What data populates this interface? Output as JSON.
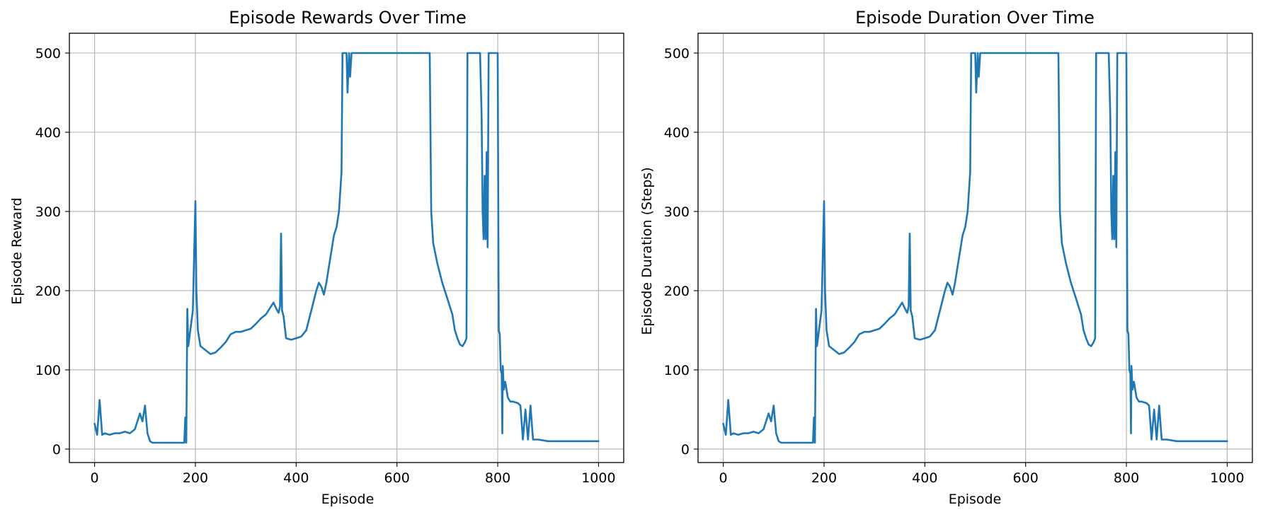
{
  "colors": {
    "series": "#1f77b4",
    "grid": "#b0b0b0",
    "background": "#ffffff"
  },
  "chart_data": [
    {
      "type": "line",
      "title": "Episode Rewards Over Time",
      "xlabel": "Episode",
      "ylabel": "Episode Reward",
      "xlim": [
        -50,
        1050
      ],
      "ylim": [
        -17,
        525
      ],
      "xticks": [
        0,
        200,
        400,
        600,
        800,
        1000
      ],
      "yticks": [
        0,
        100,
        200,
        300,
        400,
        500
      ],
      "grid": true,
      "series": [
        {
          "x": [
            0,
            5,
            10,
            15,
            20,
            30,
            40,
            50,
            60,
            70,
            80,
            90,
            95,
            100,
            105,
            110,
            115,
            120,
            130,
            140,
            150,
            160,
            170,
            178,
            180,
            182,
            184,
            186,
            190,
            195,
            200,
            202,
            205,
            210,
            220,
            230,
            240,
            250,
            260,
            270,
            280,
            290,
            300,
            310,
            320,
            330,
            340,
            350,
            355,
            360,
            365,
            368,
            370,
            372,
            375,
            380,
            390,
            400,
            410,
            420,
            430,
            440,
            445,
            450,
            455,
            460,
            470,
            475,
            480,
            485,
            490,
            492,
            495,
            500,
            502,
            505,
            507,
            510,
            520,
            560,
            600,
            640,
            665,
            668,
            670,
            672,
            680,
            690,
            700,
            710,
            715,
            720,
            725,
            730,
            735,
            738,
            740,
            742,
            745,
            765,
            768,
            770,
            772,
            774,
            776,
            778,
            780,
            782,
            784,
            786,
            788,
            790,
            795,
            798,
            800,
            802,
            804,
            806,
            808,
            809,
            810,
            812,
            815,
            820,
            825,
            830,
            840,
            845,
            850,
            855,
            860,
            865,
            870,
            880,
            900,
            950,
            1000
          ],
          "y": [
            32,
            18,
            62,
            18,
            20,
            18,
            20,
            20,
            22,
            20,
            25,
            45,
            35,
            55,
            20,
            10,
            8,
            8,
            8,
            8,
            8,
            8,
            8,
            8,
            40,
            8,
            177,
            130,
            150,
            175,
            313,
            200,
            150,
            130,
            125,
            120,
            122,
            128,
            135,
            145,
            148,
            148,
            150,
            152,
            158,
            165,
            170,
            180,
            185,
            178,
            172,
            180,
            272,
            175,
            168,
            140,
            138,
            140,
            142,
            150,
            175,
            200,
            210,
            205,
            195,
            210,
            250,
            270,
            280,
            300,
            350,
            500,
            500,
            500,
            450,
            500,
            470,
            500,
            500,
            500,
            500,
            500,
            500,
            300,
            280,
            260,
            235,
            210,
            190,
            170,
            150,
            140,
            132,
            130,
            135,
            140,
            500,
            500,
            500,
            500,
            420,
            300,
            265,
            345,
            265,
            375,
            255,
            500,
            500,
            500,
            500,
            500,
            500,
            500,
            500,
            150,
            145,
            100,
            95,
            20,
            105,
            75,
            85,
            65,
            60,
            60,
            58,
            55,
            12,
            50,
            12,
            55,
            12,
            12,
            10,
            10,
            10
          ]
        }
      ]
    },
    {
      "type": "line",
      "title": "Episode Duration Over Time",
      "xlabel": "Episode",
      "ylabel": "Episode Duration (Steps)",
      "xlim": [
        -50,
        1050
      ],
      "ylim": [
        -17,
        525
      ],
      "xticks": [
        0,
        200,
        400,
        600,
        800,
        1000
      ],
      "yticks": [
        0,
        100,
        200,
        300,
        400,
        500
      ],
      "grid": true,
      "series": [
        {
          "x": [
            0,
            5,
            10,
            15,
            20,
            30,
            40,
            50,
            60,
            70,
            80,
            90,
            95,
            100,
            105,
            110,
            115,
            120,
            130,
            140,
            150,
            160,
            170,
            178,
            180,
            182,
            184,
            186,
            190,
            195,
            200,
            202,
            205,
            210,
            220,
            230,
            240,
            250,
            260,
            270,
            280,
            290,
            300,
            310,
            320,
            330,
            340,
            350,
            355,
            360,
            365,
            368,
            370,
            372,
            375,
            380,
            390,
            400,
            410,
            420,
            430,
            440,
            445,
            450,
            455,
            460,
            470,
            475,
            480,
            485,
            490,
            492,
            495,
            500,
            502,
            505,
            507,
            510,
            520,
            560,
            600,
            640,
            665,
            668,
            670,
            672,
            680,
            690,
            700,
            710,
            715,
            720,
            725,
            730,
            735,
            738,
            740,
            742,
            745,
            765,
            768,
            770,
            772,
            774,
            776,
            778,
            780,
            782,
            784,
            786,
            788,
            790,
            795,
            798,
            800,
            802,
            804,
            806,
            808,
            809,
            810,
            812,
            815,
            820,
            825,
            830,
            840,
            845,
            850,
            855,
            860,
            865,
            870,
            880,
            900,
            950,
            1000
          ],
          "y": [
            32,
            18,
            62,
            18,
            20,
            18,
            20,
            20,
            22,
            20,
            25,
            45,
            35,
            55,
            20,
            10,
            8,
            8,
            8,
            8,
            8,
            8,
            8,
            8,
            40,
            8,
            177,
            130,
            150,
            175,
            313,
            200,
            150,
            130,
            125,
            120,
            122,
            128,
            135,
            145,
            148,
            148,
            150,
            152,
            158,
            165,
            170,
            180,
            185,
            178,
            172,
            180,
            272,
            175,
            168,
            140,
            138,
            140,
            142,
            150,
            175,
            200,
            210,
            205,
            195,
            210,
            250,
            270,
            280,
            300,
            350,
            500,
            500,
            500,
            450,
            500,
            470,
            500,
            500,
            500,
            500,
            500,
            500,
            300,
            280,
            260,
            235,
            210,
            190,
            170,
            150,
            140,
            132,
            130,
            135,
            140,
            500,
            500,
            500,
            500,
            420,
            300,
            265,
            345,
            265,
            375,
            255,
            500,
            500,
            500,
            500,
            500,
            500,
            500,
            500,
            150,
            145,
            100,
            95,
            20,
            105,
            75,
            85,
            65,
            60,
            60,
            58,
            55,
            12,
            50,
            12,
            55,
            12,
            12,
            10,
            10,
            10
          ]
        }
      ]
    }
  ]
}
